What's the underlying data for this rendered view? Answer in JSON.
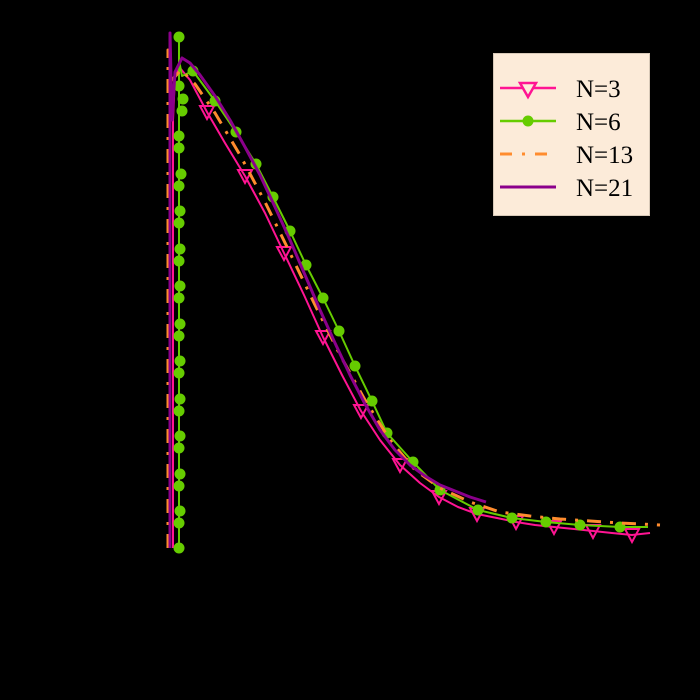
{
  "chart_data": {
    "type": "line",
    "title": "",
    "xlabel": "",
    "ylabel": "",
    "grid": false,
    "axes_visible": false,
    "background": "#000000",
    "legend": {
      "position": "upper right",
      "background": "#FCEBD9",
      "entries": [
        "N=3",
        "N=6",
        "N=13",
        "N=21"
      ]
    },
    "coordinate_space": "pixels (700x700 canvas, y increases downward)",
    "series": [
      {
        "name": "N=3",
        "color": "#FF1493",
        "line_style": "solid",
        "line_width": 2,
        "marker": "triangle-down-open",
        "points": [
          [
            173,
            548
          ],
          [
            173,
            300
          ],
          [
            173,
            120
          ],
          [
            175,
            75
          ],
          [
            180,
            68
          ],
          [
            190,
            80
          ],
          [
            207,
            112
          ],
          [
            225,
            143
          ],
          [
            245,
            176
          ],
          [
            265,
            213
          ],
          [
            284,
            253
          ],
          [
            304,
            295
          ],
          [
            323,
            337
          ],
          [
            342,
            375
          ],
          [
            361,
            411
          ],
          [
            380,
            440
          ],
          [
            400,
            465
          ],
          [
            420,
            483
          ],
          [
            439,
            497
          ],
          [
            458,
            507
          ],
          [
            477,
            514
          ],
          [
            497,
            518
          ],
          [
            516,
            522
          ],
          [
            535,
            525
          ],
          [
            554,
            527
          ],
          [
            574,
            529
          ],
          [
            593,
            531
          ],
          [
            612,
            533
          ],
          [
            632,
            535
          ],
          [
            650,
            533
          ]
        ],
        "markers": [
          [
            207,
            112
          ],
          [
            245,
            176
          ],
          [
            284,
            253
          ],
          [
            323,
            337
          ],
          [
            361,
            411
          ],
          [
            400,
            465
          ],
          [
            439,
            497
          ],
          [
            477,
            514
          ],
          [
            516,
            522
          ],
          [
            554,
            527
          ],
          [
            593,
            531
          ],
          [
            632,
            535
          ]
        ]
      },
      {
        "name": "N=6",
        "color": "#66CC00",
        "line_style": "solid",
        "line_width": 2,
        "marker": "circle-filled",
        "points": [
          [
            179,
            548
          ],
          [
            179,
            300
          ],
          [
            179,
            100
          ],
          [
            179,
            37
          ],
          [
            179,
            60
          ],
          [
            182,
            76
          ],
          [
            193,
            71
          ],
          [
            215,
            101
          ],
          [
            236,
            132
          ],
          [
            256,
            164
          ],
          [
            273,
            197
          ],
          [
            290,
            231
          ],
          [
            306,
            265
          ],
          [
            323,
            298
          ],
          [
            339,
            331
          ],
          [
            355,
            366
          ],
          [
            372,
            401
          ],
          [
            387,
            433
          ],
          [
            413,
            462
          ],
          [
            440,
            490
          ],
          [
            478,
            510
          ],
          [
            512,
            518
          ],
          [
            546,
            522
          ],
          [
            580,
            525
          ],
          [
            620,
            527
          ],
          [
            648,
            527
          ]
        ],
        "markers": [
          [
            179,
            37
          ],
          [
            179,
            86
          ],
          [
            183,
            99
          ],
          [
            182,
            111
          ],
          [
            179,
            136
          ],
          [
            179,
            148
          ],
          [
            181,
            174
          ],
          [
            179,
            186
          ],
          [
            180,
            211
          ],
          [
            179,
            223
          ],
          [
            180,
            249
          ],
          [
            179,
            261
          ],
          [
            180,
            286
          ],
          [
            179,
            298
          ],
          [
            180,
            324
          ],
          [
            179,
            336
          ],
          [
            180,
            361
          ],
          [
            179,
            373
          ],
          [
            180,
            399
          ],
          [
            179,
            411
          ],
          [
            180,
            436
          ],
          [
            179,
            448
          ],
          [
            180,
            474
          ],
          [
            179,
            486
          ],
          [
            180,
            511
          ],
          [
            179,
            523
          ],
          [
            179,
            548
          ],
          [
            193,
            71
          ],
          [
            215,
            101
          ],
          [
            236,
            132
          ],
          [
            256,
            164
          ],
          [
            273,
            197
          ],
          [
            290,
            231
          ],
          [
            306,
            265
          ],
          [
            323,
            298
          ],
          [
            339,
            331
          ],
          [
            355,
            366
          ],
          [
            372,
            401
          ],
          [
            387,
            433
          ],
          [
            413,
            462
          ],
          [
            440,
            490
          ],
          [
            478,
            510
          ],
          [
            512,
            518
          ],
          [
            546,
            522
          ],
          [
            580,
            525
          ],
          [
            620,
            527
          ]
        ]
      },
      {
        "name": "N=13",
        "color": "#FF8C2E",
        "line_style": "dashdot",
        "line_width": 3,
        "marker": "none",
        "points": [
          [
            168,
            548
          ],
          [
            168,
            300
          ],
          [
            168,
            50
          ],
          [
            172,
            80
          ],
          [
            181,
            70
          ],
          [
            195,
            84
          ],
          [
            215,
            113
          ],
          [
            240,
            155
          ],
          [
            265,
            202
          ],
          [
            290,
            253
          ],
          [
            315,
            305
          ],
          [
            340,
            355
          ],
          [
            365,
            400
          ],
          [
            390,
            440
          ],
          [
            415,
            470
          ],
          [
            440,
            488
          ],
          [
            470,
            502
          ],
          [
            500,
            512
          ],
          [
            530,
            516
          ],
          [
            560,
            519
          ],
          [
            590,
            521
          ],
          [
            620,
            523
          ],
          [
            660,
            525
          ]
        ]
      },
      {
        "name": "N=21",
        "color": "#8B008B",
        "line_style": "solid",
        "line_width": 3,
        "marker": "none",
        "points": [
          [
            170,
            548
          ],
          [
            170,
            300
          ],
          [
            170,
            33
          ],
          [
            172,
            120
          ],
          [
            175,
            72
          ],
          [
            182,
            58
          ],
          [
            190,
            63
          ],
          [
            200,
            75
          ],
          [
            215,
            96
          ],
          [
            230,
            120
          ],
          [
            245,
            147
          ],
          [
            260,
            175
          ],
          [
            275,
            207
          ],
          [
            290,
            240
          ],
          [
            305,
            275
          ],
          [
            320,
            310
          ],
          [
            335,
            343
          ],
          [
            350,
            375
          ],
          [
            365,
            404
          ],
          [
            380,
            430
          ],
          [
            395,
            450
          ],
          [
            410,
            465
          ],
          [
            425,
            476
          ],
          [
            440,
            485
          ],
          [
            455,
            491
          ],
          [
            470,
            497
          ],
          [
            486,
            502
          ]
        ]
      }
    ]
  }
}
